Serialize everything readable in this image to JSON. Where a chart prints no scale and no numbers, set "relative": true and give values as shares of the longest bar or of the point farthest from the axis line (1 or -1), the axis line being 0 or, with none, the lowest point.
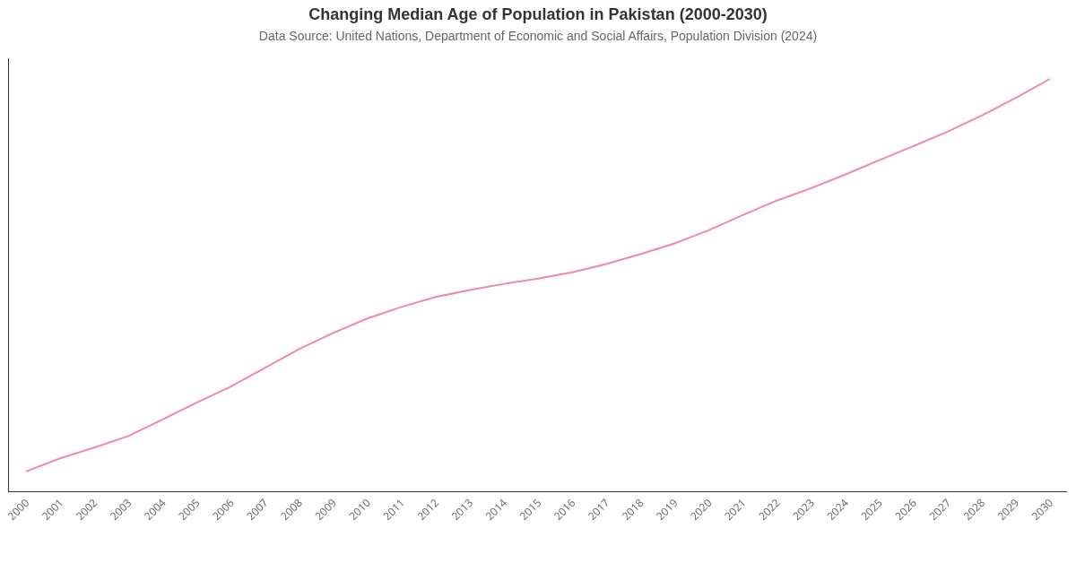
{
  "chart_data": {
    "type": "line",
    "title": "Changing Median Age of Population in Pakistan (2000-2030)",
    "subtitle": "Data Source: United Nations, Department of Economic and Social Affairs, Population Division (2024)",
    "categories": [
      "2000",
      "2001",
      "2002",
      "2003",
      "2004",
      "2005",
      "2006",
      "2007",
      "2008",
      "2009",
      "2010",
      "2011",
      "2012",
      "2013",
      "2014",
      "2015",
      "2016",
      "2017",
      "2018",
      "2019",
      "2020",
      "2021",
      "2022",
      "2023",
      "2024",
      "2025",
      "2026",
      "2027",
      "2028",
      "2029",
      "2030"
    ],
    "relative": true,
    "series": [
      {
        "color": "#f285b2",
        "values": [
          0.048,
          0.08,
          0.106,
          0.134,
          0.174,
          0.215,
          0.254,
          0.299,
          0.345,
          0.384,
          0.419,
          0.447,
          0.471,
          0.488,
          0.503,
          0.516,
          0.531,
          0.551,
          0.575,
          0.601,
          0.633,
          0.67,
          0.705,
          0.735,
          0.768,
          0.803,
          0.837,
          0.872,
          0.911,
          0.954,
          1
        ]
      }
    ],
    "grid": false,
    "marker": "none",
    "line_style": "solid"
  }
}
